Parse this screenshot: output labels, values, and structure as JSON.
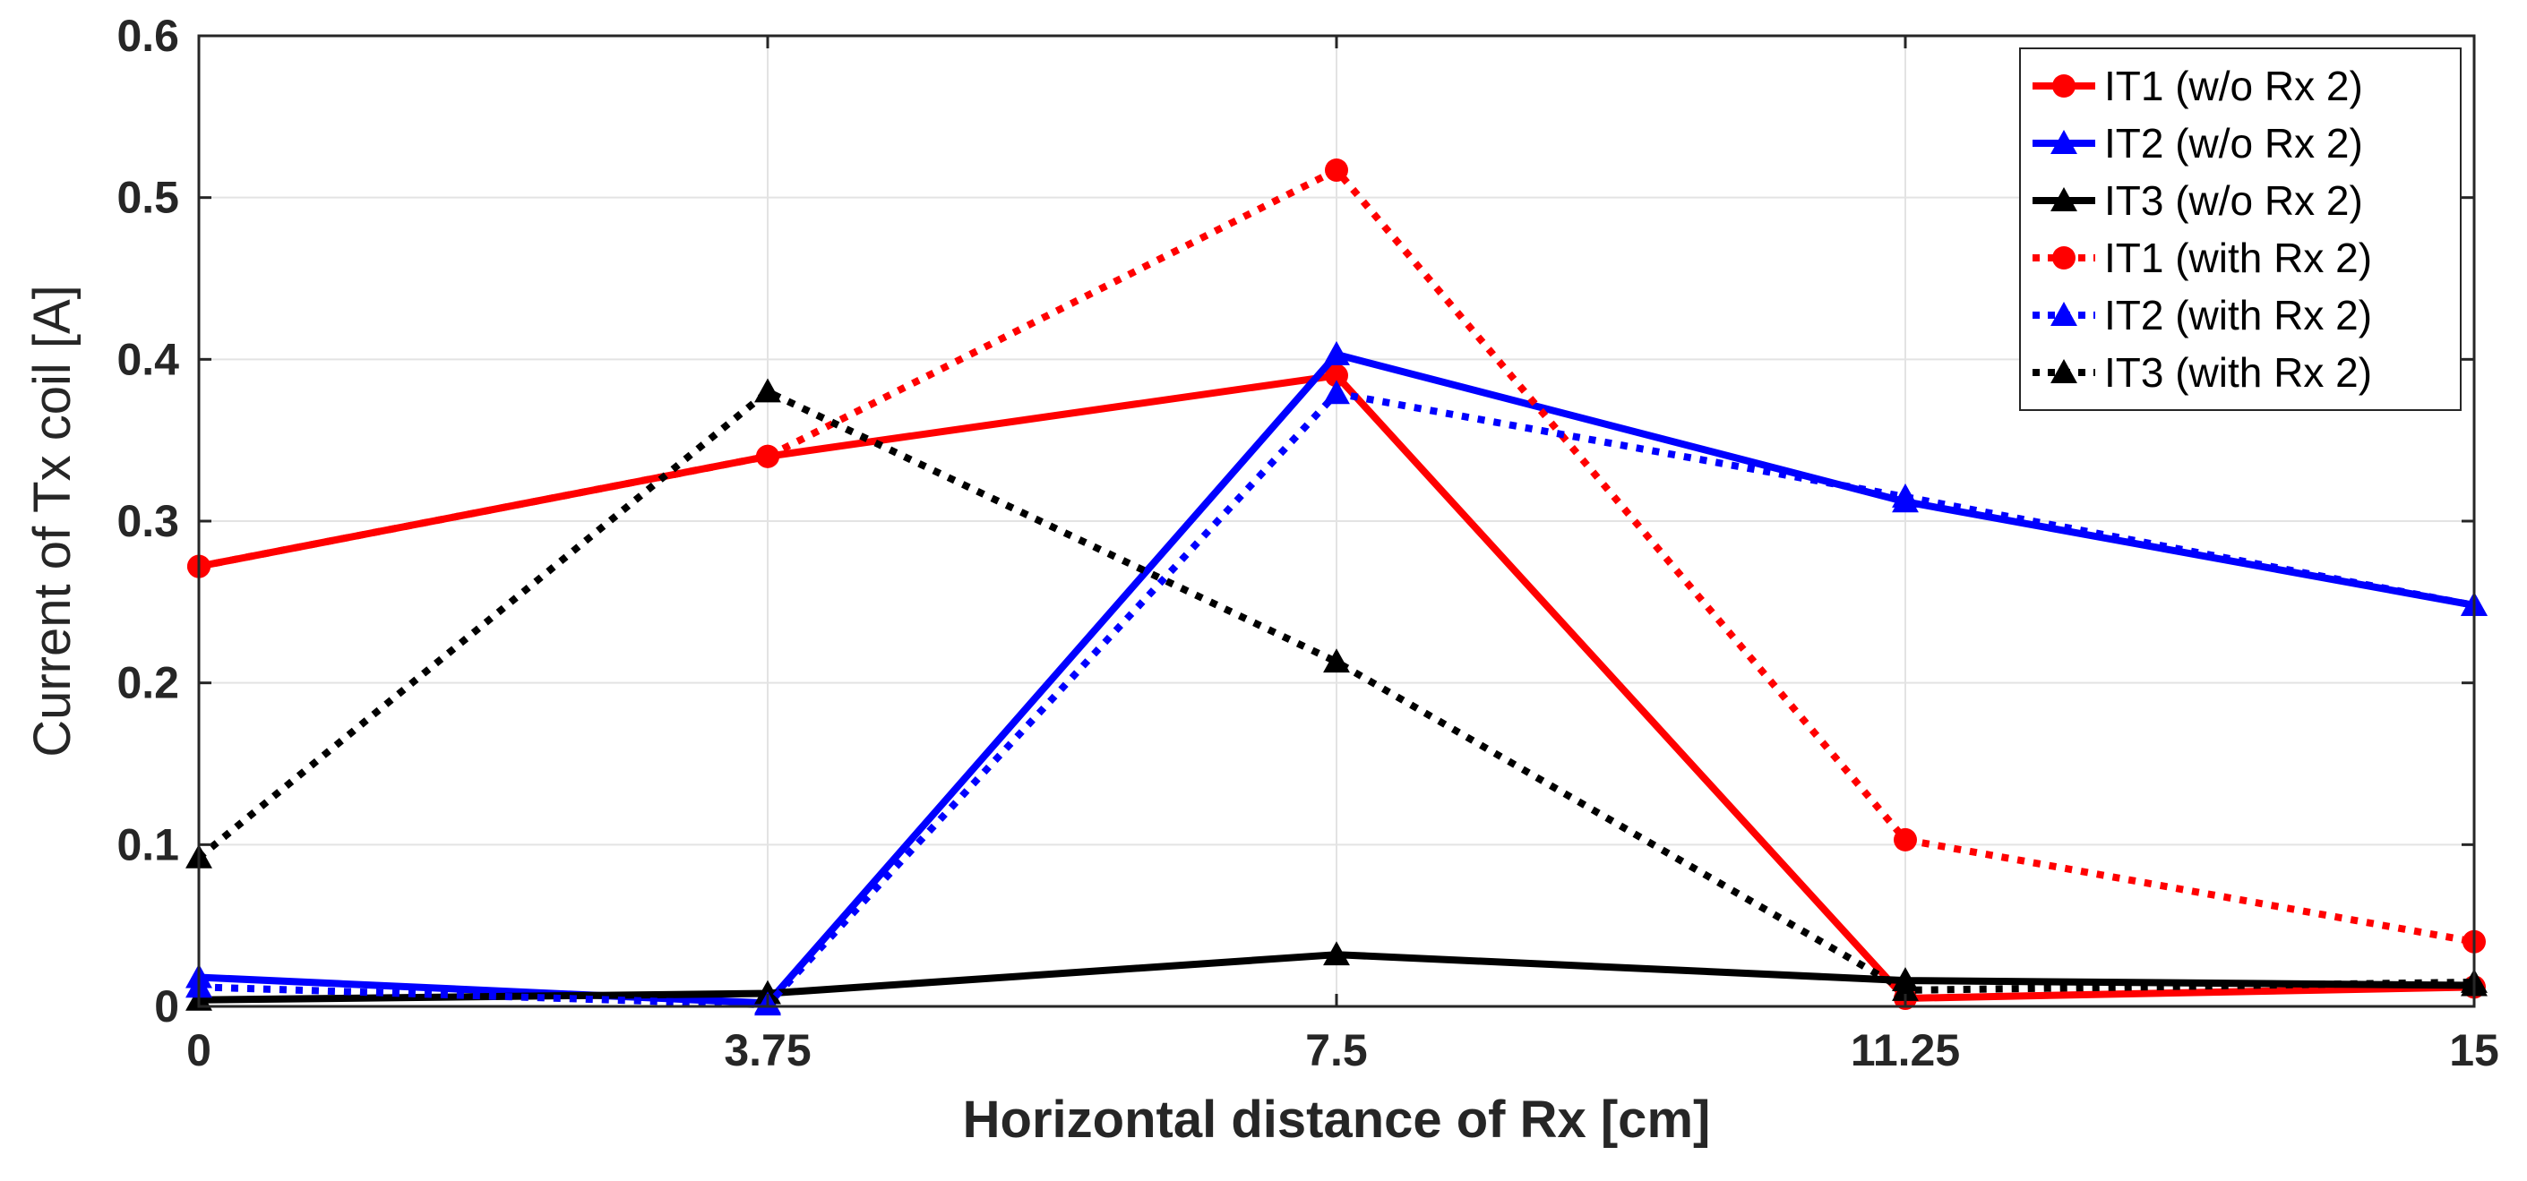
{
  "chart_data": {
    "type": "line",
    "title": "",
    "xlabel": "Horizontal distance of Rx [cm]",
    "ylabel": "Current of Tx coil [A]",
    "x": [
      0,
      3.75,
      7.5,
      11.25,
      15
    ],
    "xticks": [
      "0",
      "3.75",
      "7.5",
      "11.25",
      "15"
    ],
    "yticks": [
      "0",
      "0.1",
      "0.2",
      "0.3",
      "0.4",
      "0.5",
      "0.6"
    ],
    "xlim": [
      0,
      15
    ],
    "ylim": [
      0,
      0.6
    ],
    "grid": true,
    "legend_position": "top-right",
    "series": [
      {
        "name": "IT1 (w/o Rx 2)",
        "values": [
          0.272,
          0.34,
          0.39,
          0.005,
          0.012
        ],
        "color": "#ff0000",
        "dash": "solid",
        "marker": "circle"
      },
      {
        "name": "IT2 (w/o Rx 2)",
        "values": [
          0.018,
          0.002,
          0.403,
          0.312,
          0.248
        ],
        "color": "#0000ff",
        "dash": "solid",
        "marker": "triangle"
      },
      {
        "name": "IT3 (w/o Rx 2)",
        "values": [
          0.004,
          0.008,
          0.032,
          0.016,
          0.013
        ],
        "color": "#000000",
        "dash": "solid",
        "marker": "triangle"
      },
      {
        "name": "IT1 (with Rx 2)",
        "values": [
          0.272,
          0.34,
          0.517,
          0.103,
          0.04
        ],
        "color": "#ff0000",
        "dash": "dotted",
        "marker": "circle"
      },
      {
        "name": "IT2 (with Rx 2)",
        "values": [
          0.012,
          0.001,
          0.379,
          0.315,
          0.248
        ],
        "color": "#0000ff",
        "dash": "dotted",
        "marker": "triangle"
      },
      {
        "name": "IT3 (with Rx 2)",
        "values": [
          0.092,
          0.38,
          0.213,
          0.01,
          0.015
        ],
        "color": "#000000",
        "dash": "dotted",
        "marker": "triangle"
      }
    ]
  }
}
